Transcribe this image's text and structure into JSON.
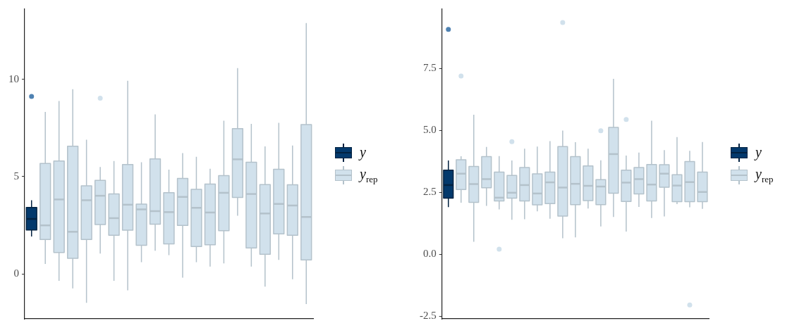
{
  "chart_data": [
    {
      "type": "box",
      "categories": [
        null,
        null,
        null,
        null,
        null,
        null,
        null,
        null,
        null,
        null,
        null,
        null,
        null,
        null,
        null,
        null,
        null,
        null,
        null,
        null,
        null
      ],
      "ylim": [
        -2.3,
        13.6
      ],
      "yticks": [
        0,
        5,
        10
      ],
      "tick_labels": "y",
      "grid": false,
      "legend": "right",
      "series": [
        {
          "name": "y",
          "color": "#03396c",
          "boxes": [
            {
              "low": 1.93,
              "q1": 2.26,
              "median": 2.83,
              "q3": 3.42,
              "high": 3.79,
              "outliers": [
                9.12
              ]
            },
            null,
            null,
            null,
            null,
            null,
            null,
            null,
            null,
            null,
            null,
            null,
            null,
            null,
            null,
            null,
            null,
            null,
            null,
            null,
            null
          ]
        },
        {
          "name": "y$_{rep}$",
          "color": "#d1e1ec",
          "boxes": [
            null,
            {
              "low": 0.52,
              "q1": 1.77,
              "median": 2.5,
              "q3": 5.68,
              "high": 8.32
            },
            {
              "low": -0.35,
              "q1": 1.11,
              "median": 3.83,
              "q3": 5.8,
              "high": 8.88
            },
            {
              "low": -0.74,
              "q1": 0.81,
              "median": 2.17,
              "q3": 6.56,
              "high": 9.49
            },
            {
              "low": -1.48,
              "q1": 1.77,
              "median": 3.79,
              "q3": 4.53,
              "high": 6.9
            },
            {
              "low": 1.05,
              "q1": 2.54,
              "median": 4.02,
              "q3": 4.81,
              "high": 5.5,
              "outliers": [
                9.03
              ]
            },
            {
              "low": -0.35,
              "q1": 1.99,
              "median": 2.87,
              "q3": 4.11,
              "high": 5.8
            },
            {
              "low": -0.84,
              "q1": 2.25,
              "median": 3.56,
              "q3": 5.62,
              "high": 9.92
            },
            {
              "low": 0.61,
              "q1": 1.48,
              "median": 3.32,
              "q3": 3.59,
              "high": 5.74
            },
            {
              "low": 1.2,
              "q1": 2.56,
              "median": 3.23,
              "q3": 5.91,
              "high": 8.2
            },
            {
              "low": 0.97,
              "q1": 1.55,
              "median": 3.18,
              "q3": 4.18,
              "high": 5.36
            },
            {
              "low": -0.19,
              "q1": 2.5,
              "median": 3.96,
              "q3": 4.91,
              "high": 6.21
            },
            {
              "low": 0.61,
              "q1": 1.41,
              "median": 3.4,
              "q3": 4.35,
              "high": 6.02
            },
            {
              "low": 0.38,
              "q1": 1.5,
              "median": 3.16,
              "q3": 4.62,
              "high": 5.41
            },
            {
              "low": 0.55,
              "q1": 2.23,
              "median": 4.17,
              "q3": 5.05,
              "high": 7.87
            },
            {
              "low": 2.99,
              "q1": 3.93,
              "median": 5.89,
              "q3": 7.47,
              "high": 10.57
            },
            {
              "low": 0.38,
              "q1": 1.34,
              "median": 4.11,
              "q3": 5.74,
              "high": 7.71
            },
            {
              "low": -0.65,
              "q1": 1.02,
              "median": 3.11,
              "q3": 4.59,
              "high": 6.55
            },
            {
              "low": 0.73,
              "q1": 2.06,
              "median": 3.6,
              "q3": 5.38,
              "high": 7.76
            },
            {
              "low": -0.27,
              "q1": 1.99,
              "median": 3.52,
              "q3": 4.58,
              "high": 6.6
            },
            {
              "low": -1.54,
              "q1": 0.73,
              "median": 2.93,
              "q3": 7.67,
              "high": 12.89
            }
          ]
        }
      ]
    },
    {
      "type": "box",
      "categories": [
        null,
        null,
        null,
        null,
        null,
        null,
        null,
        null,
        null,
        null,
        null,
        null,
        null,
        null,
        null,
        null,
        null,
        null,
        null,
        null,
        null
      ],
      "ylim": [
        -2.6,
        9.9
      ],
      "yticks": [
        -2.5,
        {
          "value": 0,
          "label": "0.0"
        },
        2.5,
        {
          "value": 5,
          "label": "5.0"
        },
        7.5
      ],
      "tick_labels": "y",
      "grid": false,
      "legend": "right",
      "series": [
        {
          "name": "y",
          "color": "#03396c",
          "boxes": [
            {
              "low": 1.91,
              "q1": 2.27,
              "median": 2.8,
              "q3": 3.4,
              "high": 3.79,
              "outliers": [
                9.08
              ]
            },
            null,
            null,
            null,
            null,
            null,
            null,
            null,
            null,
            null,
            null,
            null,
            null,
            null,
            null,
            null,
            null,
            null,
            null,
            null,
            null
          ]
        },
        {
          "name": "y$_{rep}$",
          "color": "#d1e1ec",
          "boxes": [
            null,
            {
              "low": 2.09,
              "q1": 2.62,
              "median": 3.26,
              "q3": 3.82,
              "high": 3.96,
              "outliers": [
                7.2
              ]
            },
            {
              "low": 0.51,
              "q1": 2.1,
              "median": 2.84,
              "q3": 3.55,
              "high": 5.64
            },
            {
              "low": 1.96,
              "q1": 2.69,
              "median": 3.04,
              "q3": 3.95,
              "high": 4.34
            },
            {
              "low": 1.82,
              "q1": 2.16,
              "median": 2.29,
              "q3": 3.32,
              "high": 3.97,
              "outliers": [
                0.21
              ]
            },
            {
              "low": 1.4,
              "q1": 2.27,
              "median": 2.49,
              "q3": 3.19,
              "high": 3.79,
              "outliers": [
                4.55
              ]
            },
            {
              "low": 1.42,
              "q1": 2.16,
              "median": 2.8,
              "q3": 3.51,
              "high": 4.27
            },
            {
              "low": 1.74,
              "q1": 2.0,
              "median": 2.46,
              "q3": 3.25,
              "high": 4.35
            },
            {
              "low": 1.44,
              "q1": 2.05,
              "median": 2.91,
              "q3": 3.32,
              "high": 4.57
            },
            {
              "low": 0.65,
              "q1": 1.55,
              "median": 2.7,
              "q3": 4.35,
              "high": 5.0,
              "outliers": [
                9.36
              ]
            },
            {
              "low": 0.69,
              "q1": 2.01,
              "median": 2.85,
              "q3": 3.95,
              "high": 4.53
            },
            {
              "low": 1.85,
              "q1": 2.17,
              "median": 2.77,
              "q3": 3.57,
              "high": 4.27
            },
            {
              "low": 1.13,
              "q1": 2.01,
              "median": 2.74,
              "q3": 3.02,
              "high": 3.8,
              "outliers": [
                4.99
              ]
            },
            {
              "low": 1.51,
              "q1": 2.47,
              "median": 4.05,
              "q3": 5.13,
              "high": 7.09
            },
            {
              "low": 0.92,
              "q1": 2.14,
              "median": 2.9,
              "q3": 3.4,
              "high": 3.99,
              "outliers": [
                5.45
              ]
            },
            {
              "low": 1.92,
              "q1": 2.44,
              "median": 3.04,
              "q3": 3.51,
              "high": 4.11
            },
            {
              "low": 1.47,
              "q1": 2.16,
              "median": 2.82,
              "q3": 3.63,
              "high": 5.4
            },
            {
              "low": 1.53,
              "q1": 2.71,
              "median": 3.26,
              "q3": 3.62,
              "high": 4.21
            },
            {
              "low": 2.03,
              "q1": 2.13,
              "median": 2.78,
              "q3": 3.22,
              "high": 4.74
            },
            {
              "low": 1.9,
              "q1": 2.13,
              "median": 2.92,
              "q3": 3.75,
              "high": 4.18,
              "outliers": [
                -2.04
              ]
            },
            {
              "low": 1.84,
              "q1": 2.13,
              "median": 2.52,
              "q3": 3.32,
              "high": 4.54
            }
          ]
        }
      ]
    }
  ]
}
